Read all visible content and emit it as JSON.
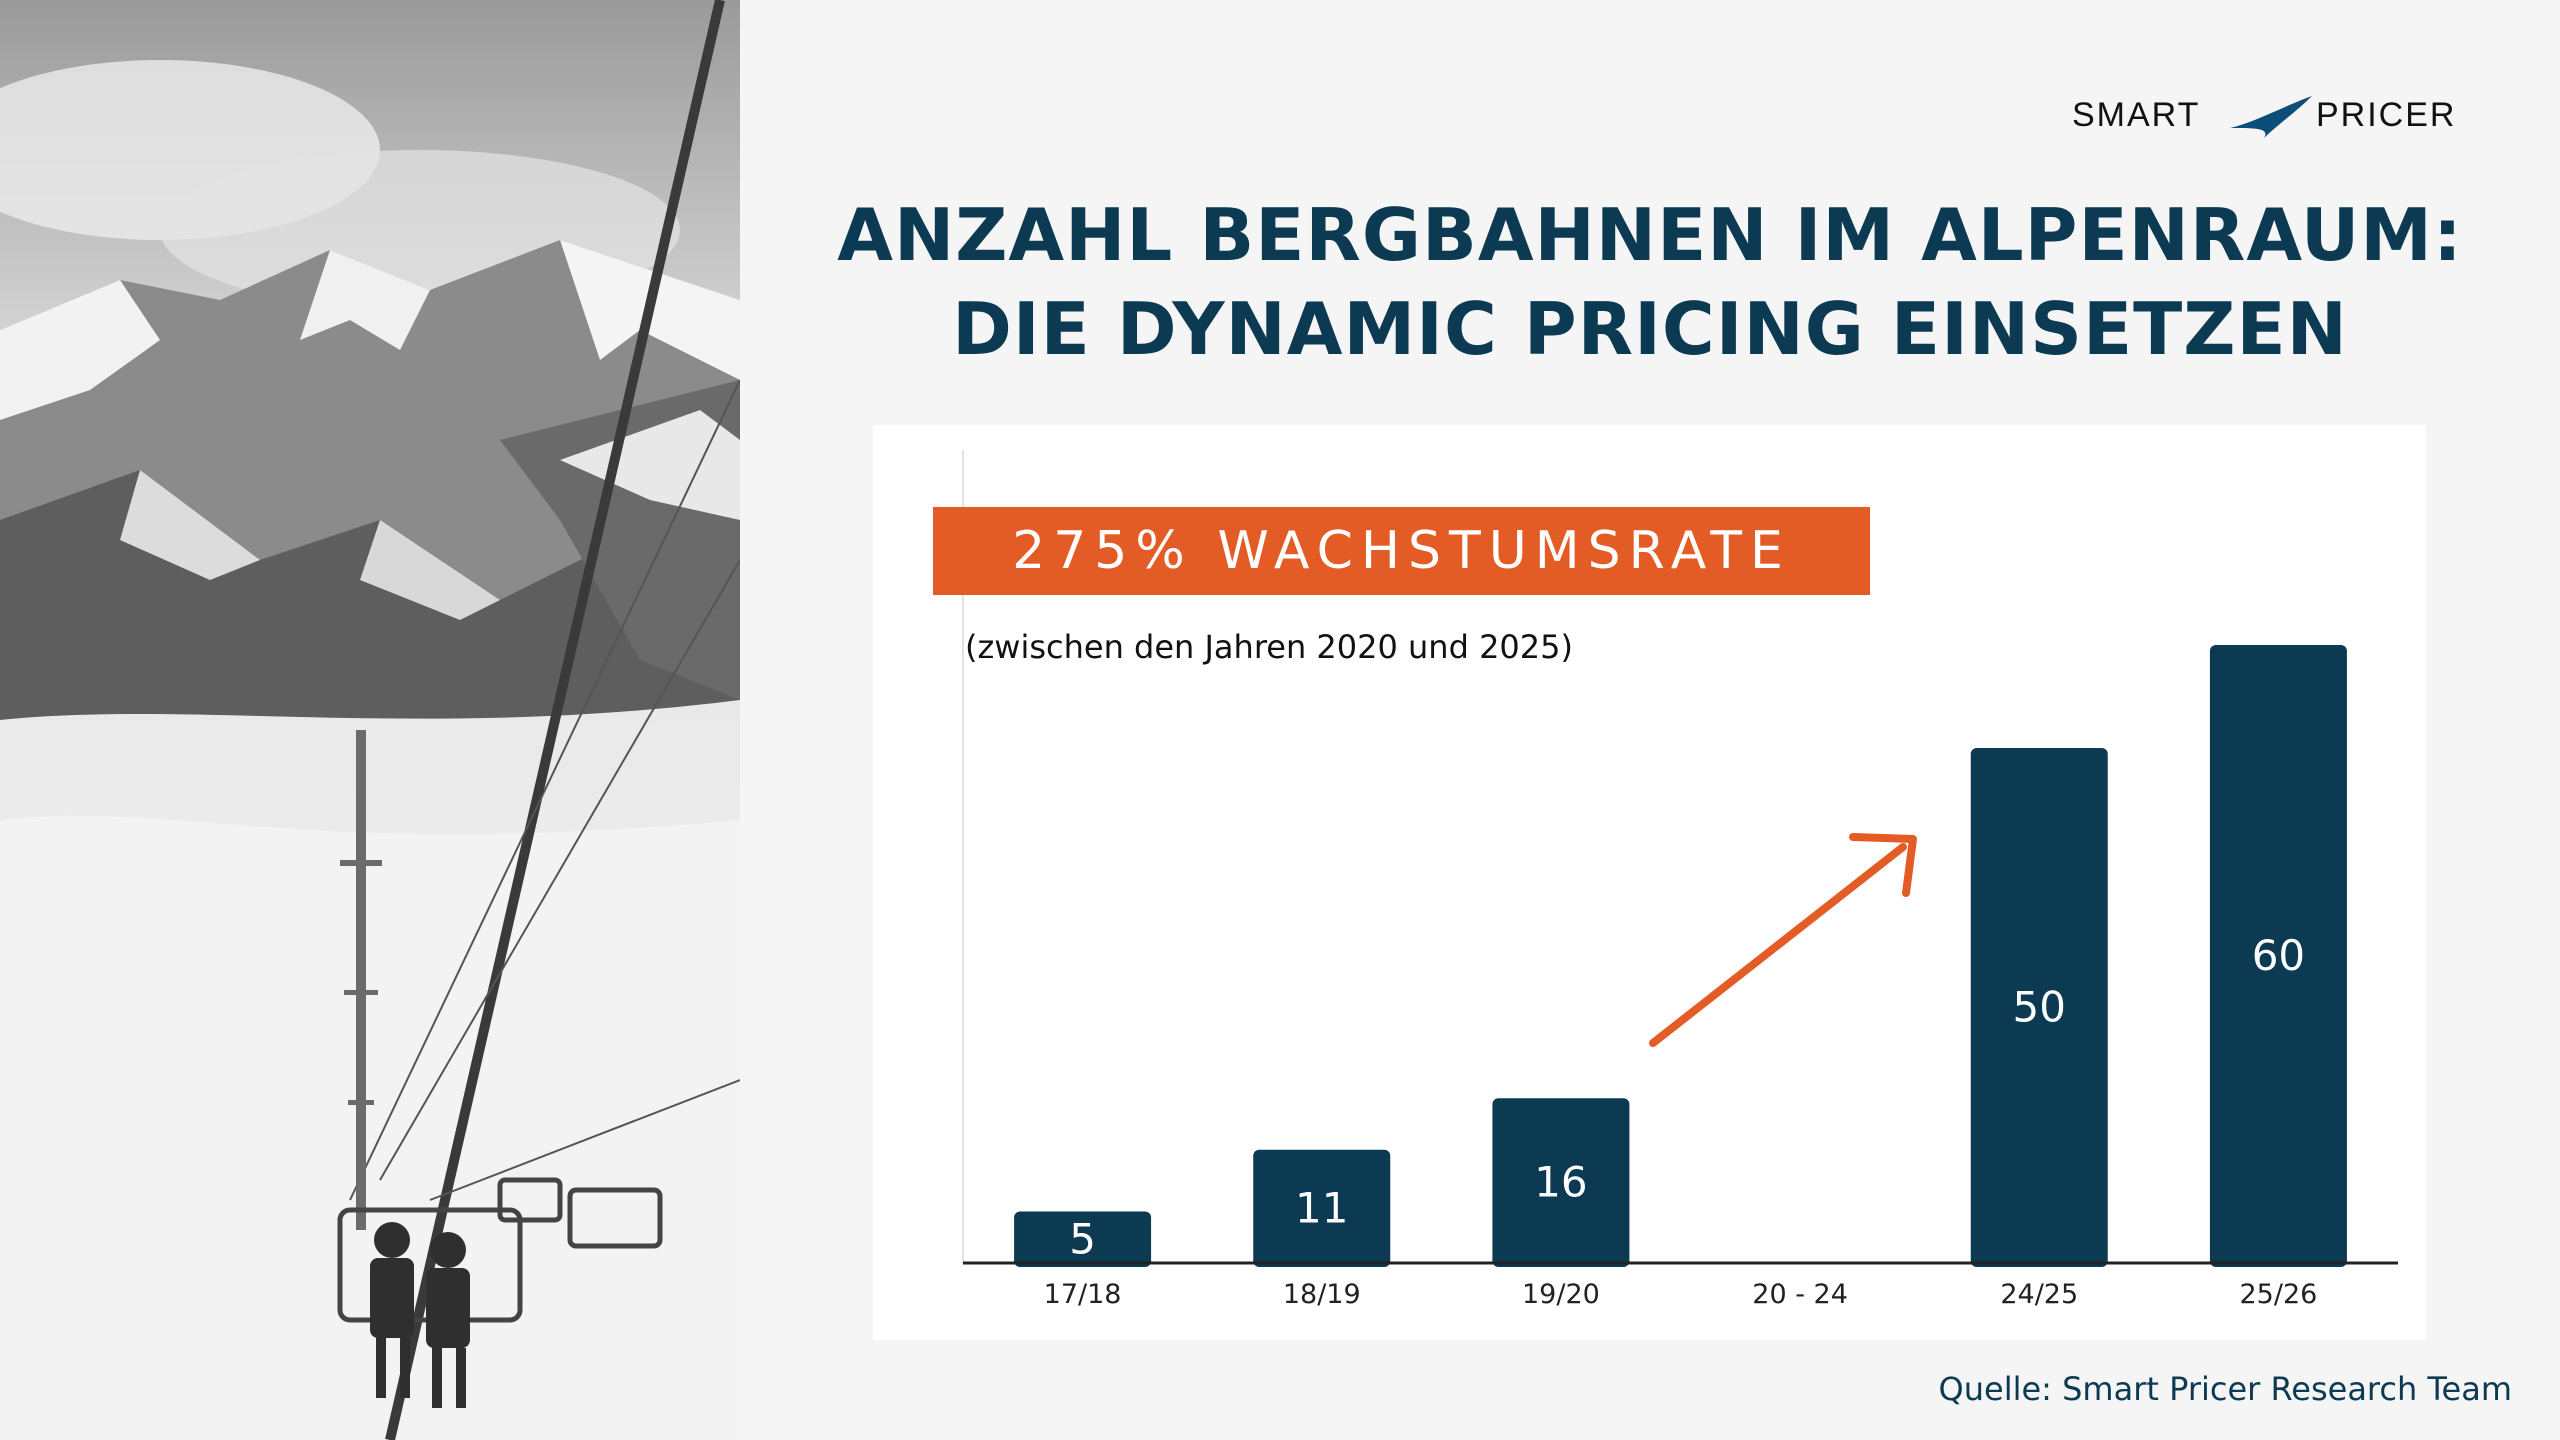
{
  "brand": {
    "left": "SMART",
    "right": "PRICER"
  },
  "title": {
    "line1": "ANZAHL BERGBAHNEN IM ALPENRAUM:",
    "line2": "DIE DYNAMIC PRICING EINSETZEN"
  },
  "growth": {
    "label": "275% WACHSTUMSRATE",
    "note": "(zwischen den Jahren 2020 und 2025)"
  },
  "source": "Quelle: Smart Pricer Research Team",
  "colors": {
    "bar": "#0b3a52",
    "accent": "#e35b25",
    "title": "#0b3a52"
  },
  "chart_data": {
    "type": "bar",
    "categories": [
      "17/18",
      "18/19",
      "19/20",
      "20 - 24",
      "24/25",
      "25/26"
    ],
    "values": [
      5,
      11,
      16,
      null,
      50,
      60
    ],
    "data_labels": [
      "5",
      "11",
      "16",
      "",
      "50",
      "60"
    ],
    "title": "",
    "xlabel": "",
    "ylabel": "",
    "ylim": [
      0,
      60
    ],
    "grid": false,
    "annotation": "upward arrow between 20 - 24 and 24/25"
  }
}
